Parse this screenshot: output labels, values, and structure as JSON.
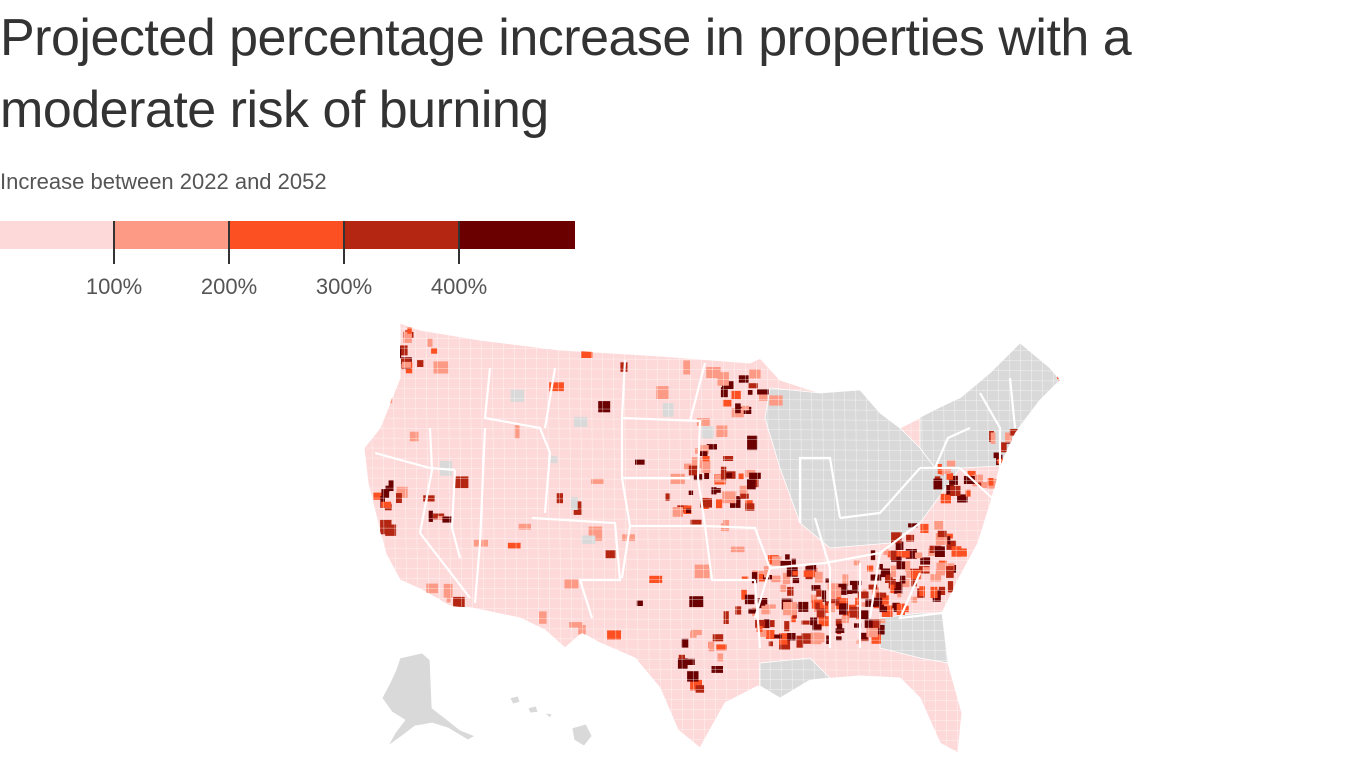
{
  "title": "Projected percentage increase in properties with a moderate risk of burning",
  "subtitle": "Increase between 2022 and 2052",
  "legend": {
    "bins": [
      {
        "color": "#fdd9d9"
      },
      {
        "color": "#fc9a85"
      },
      {
        "color": "#fc4f22"
      },
      {
        "color": "#b52612"
      },
      {
        "color": "#6b0000"
      }
    ],
    "ticks": [
      "100%",
      "200%",
      "300%",
      "400%"
    ]
  },
  "map": {
    "no_data_color": "#d9d9d9",
    "border_color": "#ffffff"
  }
}
